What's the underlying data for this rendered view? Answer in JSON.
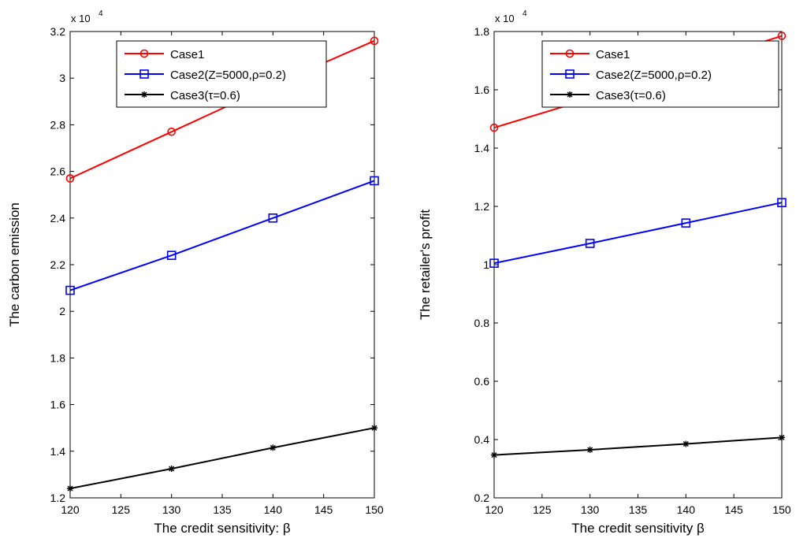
{
  "chart_data": [
    {
      "type": "line",
      "title": "",
      "exponent_label": "x 10",
      "exponent_power": "4",
      "xlabel": "The credit sensitivity: β",
      "ylabel": "The carbon emission",
      "x": [
        120,
        130,
        140,
        150
      ],
      "xlim": [
        120,
        150
      ],
      "ylim": [
        1.2,
        3.2
      ],
      "xticks": [
        120,
        125,
        130,
        135,
        140,
        145,
        150
      ],
      "xtick_labels": [
        "120",
        "125",
        "130",
        "135",
        "140",
        "145",
        "150"
      ],
      "yticks": [
        1.2,
        1.4,
        1.6,
        1.8,
        2.0,
        2.2,
        2.4,
        2.6,
        2.8,
        3.0,
        3.2
      ],
      "ytick_labels": [
        "1.2",
        "1.4",
        "1.6",
        "1.8",
        "2",
        "2.2",
        "2.4",
        "2.6",
        "2.8",
        "3",
        "3.2"
      ],
      "grid": false,
      "legend_position": "top-right",
      "series": [
        {
          "name": "Case1",
          "color": "#ff0000",
          "marker": "circle",
          "values": [
            2.57,
            2.77,
            2.97,
            3.16
          ]
        },
        {
          "name": "Case2(Z=5000,ρ=0.2)",
          "color": "#0000ff",
          "marker": "square",
          "values": [
            2.09,
            2.24,
            2.4,
            2.56
          ]
        },
        {
          "name": "Case3(τ=0.6)",
          "color": "#000000",
          "marker": "asterisk",
          "values": [
            1.24,
            1.325,
            1.415,
            1.5
          ]
        }
      ]
    },
    {
      "type": "line",
      "title": "",
      "exponent_label": "x 10",
      "exponent_power": "4",
      "xlabel": "The credit sensitivity β",
      "ylabel": "The retailer's profit",
      "x": [
        120,
        130,
        140,
        150
      ],
      "xlim": [
        120,
        150
      ],
      "ylim": [
        0.2,
        1.8
      ],
      "xticks": [
        120,
        125,
        130,
        135,
        140,
        145,
        150
      ],
      "xtick_labels": [
        "120",
        "125",
        "130",
        "135",
        "140",
        "145",
        "150"
      ],
      "yticks": [
        0.2,
        0.4,
        0.6,
        0.8,
        1.0,
        1.2,
        1.4,
        1.6,
        1.8
      ],
      "ytick_labels": [
        "0.2",
        "0.4",
        "0.6",
        "0.8",
        "1",
        "1.2",
        "1.4",
        "1.6",
        "1.8"
      ],
      "grid": false,
      "legend_position": "top-right",
      "series": [
        {
          "name": "Case1",
          "color": "#ff0000",
          "marker": "circle",
          "values": [
            1.47,
            1.57,
            1.68,
            1.785
          ]
        },
        {
          "name": "Case2(Z=5000,ρ=0.2)",
          "color": "#0000ff",
          "marker": "square",
          "values": [
            1.005,
            1.073,
            1.143,
            1.213
          ]
        },
        {
          "name": "Case3(τ=0.6)",
          "color": "#000000",
          "marker": "asterisk",
          "values": [
            0.347,
            0.365,
            0.385,
            0.407
          ]
        }
      ]
    }
  ]
}
